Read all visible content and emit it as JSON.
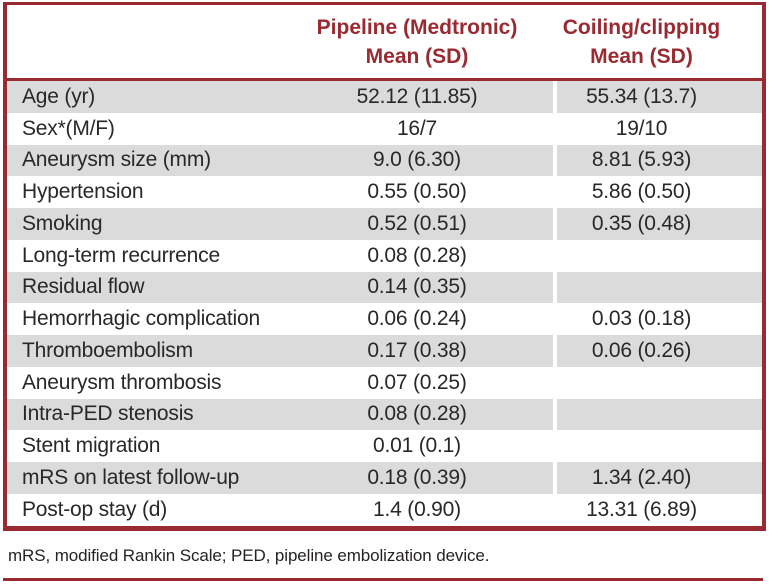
{
  "colors": {
    "accent": "#9a2a31",
    "row_shade": "#dbdbdb",
    "text": "#2b2728"
  },
  "table": {
    "header": {
      "col2_line1": "Pipeline (Medtronic)",
      "col2_line2": "Mean (SD)",
      "col3_line1": "Coiling/clipping",
      "col3_line2": "Mean (SD)"
    },
    "rows": [
      {
        "label": "Age (yr)",
        "pipeline": "52.12 (11.85)",
        "coiling": "55.34 (13.7)"
      },
      {
        "label": "Sex*(M/F)",
        "pipeline": "16/7",
        "coiling": "19/10"
      },
      {
        "label": "Aneurysm size (mm)",
        "pipeline": "9.0 (6.30)",
        "coiling": "8.81 (5.93)"
      },
      {
        "label": "Hypertension",
        "pipeline": "0.55 (0.50)",
        "coiling": "5.86 (0.50)"
      },
      {
        "label": "Smoking",
        "pipeline": "0.52 (0.51)",
        "coiling": "0.35 (0.48)"
      },
      {
        "label": "Long-term recurrence",
        "pipeline": "0.08 (0.28)",
        "coiling": ""
      },
      {
        "label": "Residual flow",
        "pipeline": "0.14 (0.35)",
        "coiling": ""
      },
      {
        "label": "Hemorrhagic complication",
        "pipeline": "0.06 (0.24)",
        "coiling": "0.03 (0.18)"
      },
      {
        "label": "Thromboembolism",
        "pipeline": "0.17 (0.38)",
        "coiling": "0.06 (0.26)"
      },
      {
        "label": "Aneurysm thrombosis",
        "pipeline": "0.07 (0.25)",
        "coiling": ""
      },
      {
        "label": "Intra-PED stenosis",
        "pipeline": "0.08 (0.28)",
        "coiling": ""
      },
      {
        "label": "Stent migration",
        "pipeline": "0.01 (0.1)",
        "coiling": ""
      },
      {
        "label": "mRS on latest follow-up",
        "pipeline": "0.18 (0.39)",
        "coiling": "1.34 (2.40)"
      },
      {
        "label": "Post-op stay (d)",
        "pipeline": "1.4 (0.90)",
        "coiling": "13.31 (6.89)"
      }
    ],
    "footnote": "mRS, modified Rankin Scale; PED, pipeline embolization device."
  }
}
